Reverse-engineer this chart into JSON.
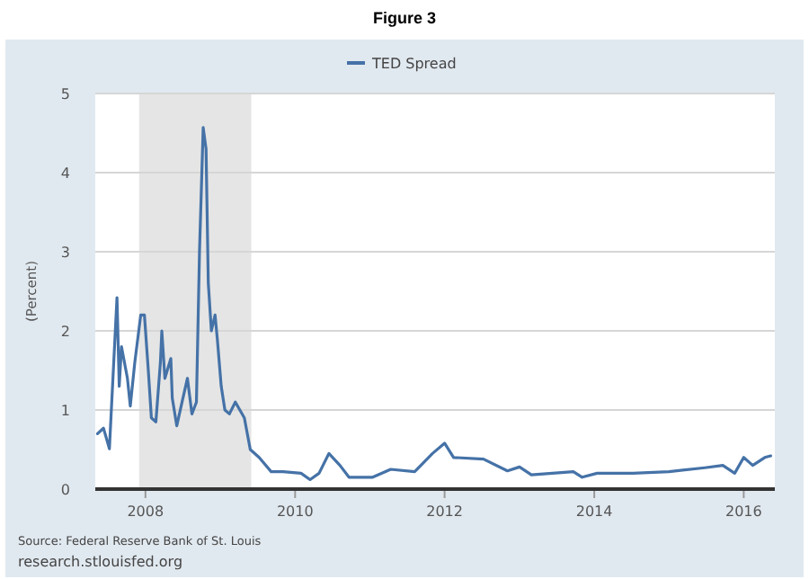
{
  "chart_data": {
    "type": "line",
    "title": "Figure 3",
    "ylabel": "(Percent)",
    "x": [
      "2007-05-12",
      "2007-06-10",
      "2007-07-09",
      "2007-08-15",
      "2007-08-26",
      "2007-09-06",
      "2007-10-05",
      "2007-10-19",
      "2007-11-10",
      "2007-12-09",
      "2007-12-27",
      "2008-01-15",
      "2008-01-30",
      "2008-02-21",
      "2008-03-14",
      "2008-03-21",
      "2008-04-05",
      "2008-05-04",
      "2008-05-11",
      "2008-06-02",
      "2008-07-02",
      "2008-07-24",
      "2008-08-15",
      "2008-09-06",
      "2008-09-21",
      "2008-10-09",
      "2008-10-23",
      "2008-11-03",
      "2008-11-18",
      "2008-12-06",
      "2008-12-17",
      "2009-01-05",
      "2009-01-23",
      "2009-02-14",
      "2009-03-15",
      "2009-04-28",
      "2009-05-27",
      "2009-07-09",
      "2009-09-06",
      "2009-11-03",
      "2010-01-30",
      "2010-03-15",
      "2010-04-28",
      "2010-06-15",
      "2010-08-08",
      "2010-09-21",
      "2011-01-15",
      "2011-04-13",
      "2011-08-08",
      "2011-11-03",
      "2012-01-01",
      "2012-02-14",
      "2012-07-09",
      "2012-11-03",
      "2013-01-01",
      "2013-02-28",
      "2013-09-21",
      "2013-11-03",
      "2014-01-15",
      "2014-07-09",
      "2015-01-01",
      "2015-06-25",
      "2015-09-21",
      "2015-11-18",
      "2016-01-01",
      "2016-02-14",
      "2016-04-13",
      "2016-05-12"
    ],
    "series": [
      {
        "name": "TED Spread",
        "color": "#4572a7",
        "values": [
          0.7,
          0.77,
          0.51,
          2.42,
          1.3,
          1.8,
          1.4,
          1.05,
          1.6,
          2.2,
          2.2,
          1.5,
          0.9,
          0.85,
          1.6,
          2.0,
          1.4,
          1.65,
          1.15,
          0.8,
          1.15,
          1.4,
          0.95,
          1.1,
          3.0,
          4.57,
          4.3,
          2.6,
          2.0,
          2.2,
          1.9,
          1.3,
          1.0,
          0.95,
          1.1,
          0.9,
          0.5,
          0.4,
          0.22,
          0.22,
          0.2,
          0.12,
          0.2,
          0.45,
          0.3,
          0.15,
          0.15,
          0.25,
          0.22,
          0.45,
          0.58,
          0.4,
          0.38,
          0.23,
          0.28,
          0.18,
          0.22,
          0.15,
          0.2,
          0.2,
          0.22,
          0.27,
          0.3,
          0.2,
          0.4,
          0.3,
          0.4,
          0.42
        ]
      }
    ],
    "xlim": [
      "2007-05-01",
      "2016-06-01"
    ],
    "xticks": [
      "2008",
      "2010",
      "2012",
      "2014",
      "2016"
    ],
    "ylim": [
      0,
      5
    ],
    "yticks": [
      0,
      1,
      2,
      3,
      4,
      5
    ],
    "grid": "y",
    "legend": "top",
    "line_style": "solid",
    "marker": "none",
    "bands": [
      {
        "axis": "x",
        "from": "2007-12-01",
        "to": "2009-06-01",
        "color": "#e5e5e5"
      }
    ],
    "annotations": [
      "Source: Federal Reserve Bank of St. Louis",
      "research.stlouisfed.org"
    ]
  }
}
